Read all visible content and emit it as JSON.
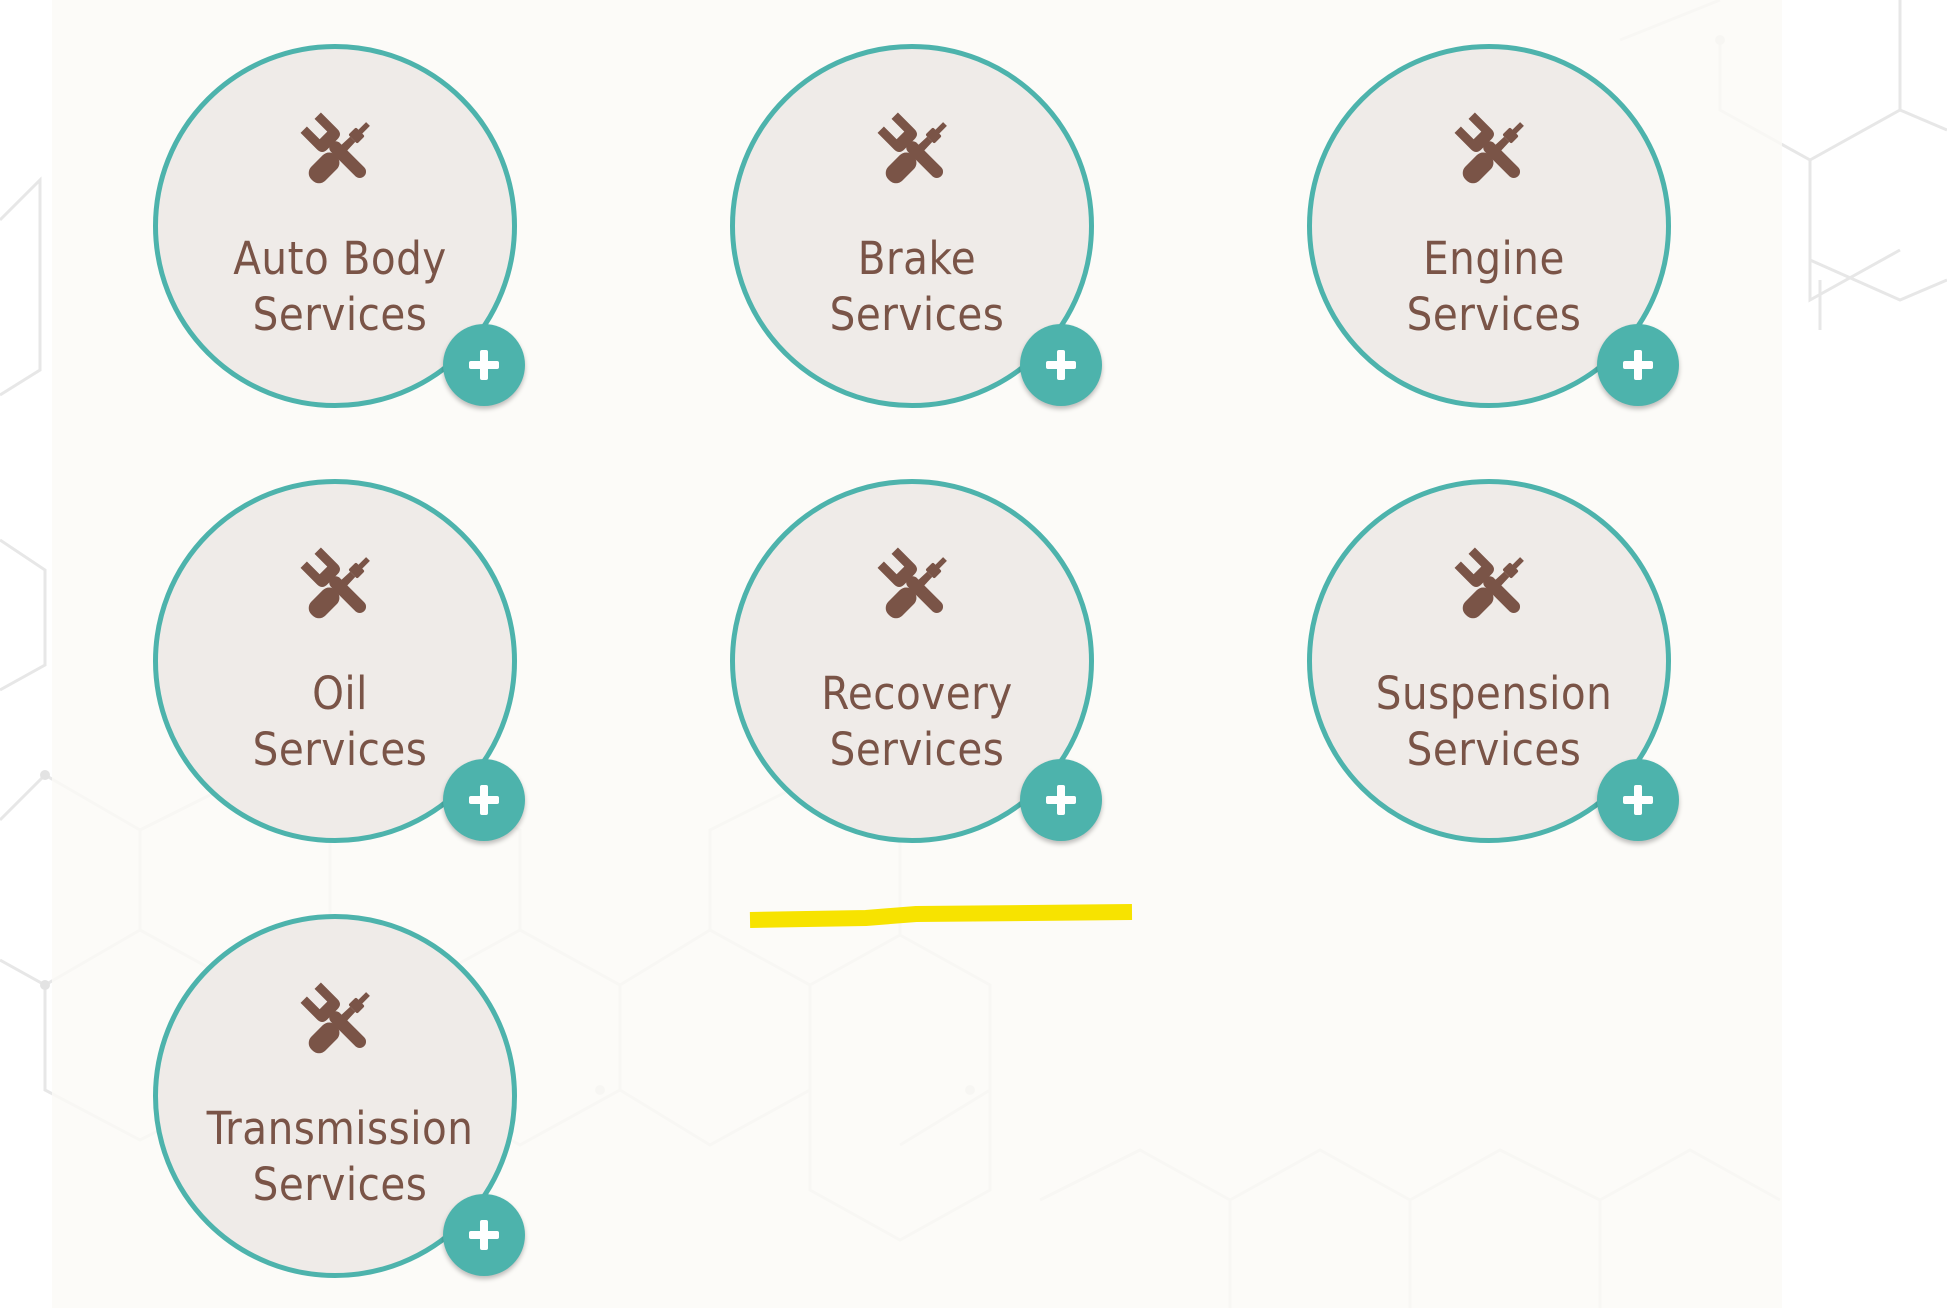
{
  "services": [
    {
      "line1": "Auto Body",
      "line2": "Services",
      "icon": "tools-icon",
      "action": "plus"
    },
    {
      "line1": "Brake",
      "line2": "Services",
      "icon": "tools-icon",
      "action": "plus"
    },
    {
      "line1": "Engine",
      "line2": "Services",
      "icon": "tools-icon",
      "action": "plus"
    },
    {
      "line1": "Oil",
      "line2": "Services",
      "icon": "tools-icon",
      "action": "plus"
    },
    {
      "line1": "Recovery",
      "line2": "Services",
      "icon": "tools-icon",
      "action": "plus"
    },
    {
      "line1": "Suspension",
      "line2": "Services",
      "icon": "tools-icon",
      "action": "plus"
    },
    {
      "line1": "Transmission",
      "line2": "Services",
      "icon": "tools-icon",
      "action": "plus"
    }
  ],
  "colors": {
    "accent": "#4db3ac",
    "text": "#7a5447",
    "card": "#efebe8",
    "highlight": "#f7e300"
  }
}
